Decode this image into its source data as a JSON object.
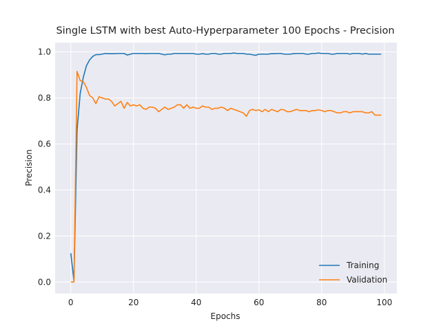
{
  "chart_data": {
    "type": "line",
    "title": "Single LSTM with best Auto-Hyperparameter 100 Epochs - Precision",
    "xlabel": "Epochs",
    "ylabel": "Precision",
    "xlim": [
      -5,
      104
    ],
    "ylim": [
      -0.05,
      1.04
    ],
    "xticks": [
      0,
      20,
      40,
      60,
      80,
      100
    ],
    "yticks": [
      0.0,
      0.2,
      0.4,
      0.6,
      0.8,
      1.0
    ],
    "xtick_labels": [
      "0",
      "20",
      "40",
      "60",
      "80",
      "100"
    ],
    "ytick_labels": [
      "0.0",
      "0.2",
      "0.4",
      "0.6",
      "0.8",
      "1.0"
    ],
    "grid": true,
    "legend_position": "lower-right",
    "background": "#eaeaf2",
    "series": [
      {
        "name": "Training",
        "color": "#1f77b4",
        "x": [
          0,
          1,
          2,
          3,
          4,
          5,
          6,
          7,
          8,
          9,
          10,
          11,
          12,
          13,
          14,
          15,
          16,
          17,
          18,
          19,
          20,
          21,
          22,
          23,
          24,
          25,
          26,
          27,
          28,
          29,
          30,
          31,
          32,
          33,
          34,
          35,
          36,
          37,
          38,
          39,
          40,
          41,
          42,
          43,
          44,
          45,
          46,
          47,
          48,
          49,
          50,
          51,
          52,
          53,
          54,
          55,
          56,
          57,
          58,
          59,
          60,
          61,
          62,
          63,
          64,
          65,
          66,
          67,
          68,
          69,
          70,
          71,
          72,
          73,
          74,
          75,
          76,
          77,
          78,
          79,
          80,
          81,
          82,
          83,
          84,
          85,
          86,
          87,
          88,
          89,
          90,
          91,
          92,
          93,
          94,
          95,
          96,
          97,
          98,
          99
        ],
        "values": [
          0.125,
          0.005,
          0.66,
          0.82,
          0.89,
          0.94,
          0.965,
          0.98,
          0.988,
          0.988,
          0.99,
          0.993,
          0.992,
          0.992,
          0.992,
          0.993,
          0.993,
          0.993,
          0.986,
          0.99,
          0.993,
          0.993,
          0.993,
          0.993,
          0.992,
          0.993,
          0.993,
          0.993,
          0.993,
          0.99,
          0.987,
          0.99,
          0.99,
          0.993,
          0.993,
          0.993,
          0.993,
          0.993,
          0.993,
          0.993,
          0.99,
          0.99,
          0.992,
          0.99,
          0.99,
          0.993,
          0.993,
          0.99,
          0.99,
          0.993,
          0.993,
          0.993,
          0.995,
          0.993,
          0.993,
          0.993,
          0.99,
          0.99,
          0.987,
          0.985,
          0.99,
          0.99,
          0.99,
          0.99,
          0.992,
          0.992,
          0.993,
          0.993,
          0.99,
          0.99,
          0.99,
          0.992,
          0.993,
          0.993,
          0.993,
          0.99,
          0.99,
          0.993,
          0.993,
          0.995,
          0.993,
          0.993,
          0.993,
          0.99,
          0.99,
          0.993,
          0.993,
          0.993,
          0.993,
          0.99,
          0.993,
          0.993,
          0.993,
          0.99,
          0.993,
          0.99,
          0.99,
          0.99,
          0.99,
          0.99
        ]
      },
      {
        "name": "Validation",
        "color": "#ff7f0e",
        "x": [
          0,
          1,
          2,
          3,
          4,
          5,
          6,
          7,
          8,
          9,
          10,
          11,
          12,
          13,
          14,
          15,
          16,
          17,
          18,
          19,
          20,
          21,
          22,
          23,
          24,
          25,
          26,
          27,
          28,
          29,
          30,
          31,
          32,
          33,
          34,
          35,
          36,
          37,
          38,
          39,
          40,
          41,
          42,
          43,
          44,
          45,
          46,
          47,
          48,
          49,
          50,
          51,
          52,
          53,
          54,
          55,
          56,
          57,
          58,
          59,
          60,
          61,
          62,
          63,
          64,
          65,
          66,
          67,
          68,
          69,
          70,
          71,
          72,
          73,
          74,
          75,
          76,
          77,
          78,
          79,
          80,
          81,
          82,
          83,
          84,
          85,
          86,
          87,
          88,
          89,
          90,
          91,
          92,
          93,
          94,
          95,
          96,
          97,
          98,
          99
        ],
        "values": [
          0.0,
          0.0,
          0.915,
          0.875,
          0.87,
          0.845,
          0.81,
          0.8,
          0.775,
          0.805,
          0.8,
          0.795,
          0.795,
          0.785,
          0.765,
          0.775,
          0.785,
          0.755,
          0.78,
          0.765,
          0.77,
          0.765,
          0.77,
          0.755,
          0.75,
          0.76,
          0.76,
          0.755,
          0.74,
          0.75,
          0.76,
          0.75,
          0.755,
          0.76,
          0.77,
          0.77,
          0.755,
          0.77,
          0.755,
          0.76,
          0.755,
          0.755,
          0.765,
          0.76,
          0.76,
          0.75,
          0.755,
          0.755,
          0.76,
          0.755,
          0.745,
          0.755,
          0.75,
          0.745,
          0.74,
          0.735,
          0.72,
          0.745,
          0.75,
          0.745,
          0.748,
          0.74,
          0.75,
          0.74,
          0.75,
          0.745,
          0.74,
          0.75,
          0.748,
          0.74,
          0.74,
          0.745,
          0.75,
          0.745,
          0.745,
          0.745,
          0.74,
          0.745,
          0.745,
          0.748,
          0.745,
          0.74,
          0.745,
          0.745,
          0.74,
          0.735,
          0.735,
          0.74,
          0.74,
          0.735,
          0.74,
          0.74,
          0.74,
          0.74,
          0.735,
          0.735,
          0.74,
          0.725,
          0.725,
          0.725
        ]
      }
    ]
  }
}
